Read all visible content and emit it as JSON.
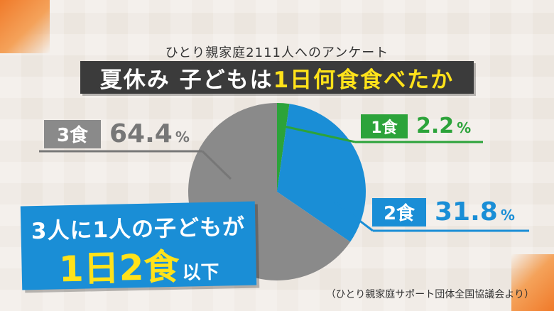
{
  "subtitle": "ひとり親家庭2111人へのアンケート",
  "title_part1": "夏休み 子どもは",
  "title_part2": "1日何食食べたか",
  "chart_data": {
    "type": "pie",
    "title": "夏休み 子どもは1日何食食べたか",
    "slices": [
      {
        "label": "1食",
        "value": 2.2,
        "color": "#2ca33a"
      },
      {
        "label": "2食",
        "value": 31.8,
        "color": "#1a8ed6"
      },
      {
        "label": "3食",
        "value": 64.4,
        "color": "#8a8a8a"
      }
    ],
    "unit": "%"
  },
  "labels": {
    "one": {
      "tag": "1食",
      "value": "2.2",
      "unit": "%"
    },
    "two": {
      "tag": "2食",
      "value": "31.8",
      "unit": "%"
    },
    "three": {
      "tag": "3食",
      "value": "64.4",
      "unit": "%"
    }
  },
  "callout": {
    "line1": "3人に1人の子どもが",
    "big": "1日2食",
    "suffix": "以下"
  },
  "source": "（ひとり親家庭サポート団体全国協議会より）"
}
